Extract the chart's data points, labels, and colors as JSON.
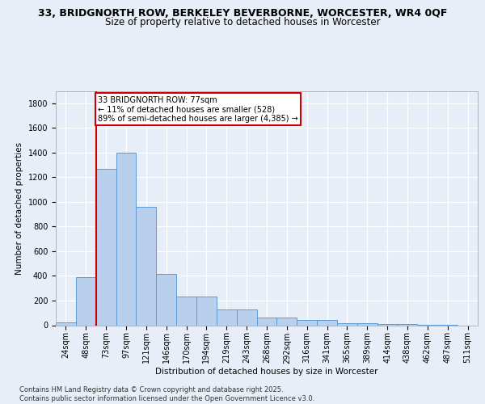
{
  "title_line1": "33, BRIDGNORTH ROW, BERKELEY BEVERBORNE, WORCESTER, WR4 0QF",
  "title_line2": "Size of property relative to detached houses in Worcester",
  "xlabel": "Distribution of detached houses by size in Worcester",
  "ylabel": "Number of detached properties",
  "categories": [
    "24sqm",
    "48sqm",
    "73sqm",
    "97sqm",
    "121sqm",
    "146sqm",
    "170sqm",
    "194sqm",
    "219sqm",
    "243sqm",
    "268sqm",
    "292sqm",
    "316sqm",
    "341sqm",
    "365sqm",
    "389sqm",
    "414sqm",
    "438sqm",
    "462sqm",
    "487sqm",
    "511sqm"
  ],
  "values": [
    25,
    390,
    1265,
    1400,
    960,
    415,
    235,
    235,
    130,
    130,
    65,
    65,
    45,
    45,
    18,
    18,
    10,
    10,
    4,
    4,
    0
  ],
  "bar_color": "#b8d0eb",
  "bar_edge_color": "#5b9bd5",
  "vline_color": "#cc0000",
  "vline_position": 2,
  "annotation_text": "33 BRIDGNORTH ROW: 77sqm\n← 11% of detached houses are smaller (528)\n89% of semi-detached houses are larger (4,385) →",
  "annotation_box_facecolor": "white",
  "annotation_box_edgecolor": "#cc0000",
  "ylim": [
    0,
    1900
  ],
  "yticks": [
    0,
    200,
    400,
    600,
    800,
    1000,
    1200,
    1400,
    1600,
    1800
  ],
  "background_color": "#e8eef8",
  "grid_color": "#ffffff",
  "footer_text": "Contains HM Land Registry data © Crown copyright and database right 2025.\nContains public sector information licensed under the Open Government Licence v3.0.",
  "title_fontsize": 9,
  "subtitle_fontsize": 8.5,
  "axis_label_fontsize": 7.5,
  "tick_fontsize": 7,
  "annotation_fontsize": 7,
  "footer_fontsize": 6
}
